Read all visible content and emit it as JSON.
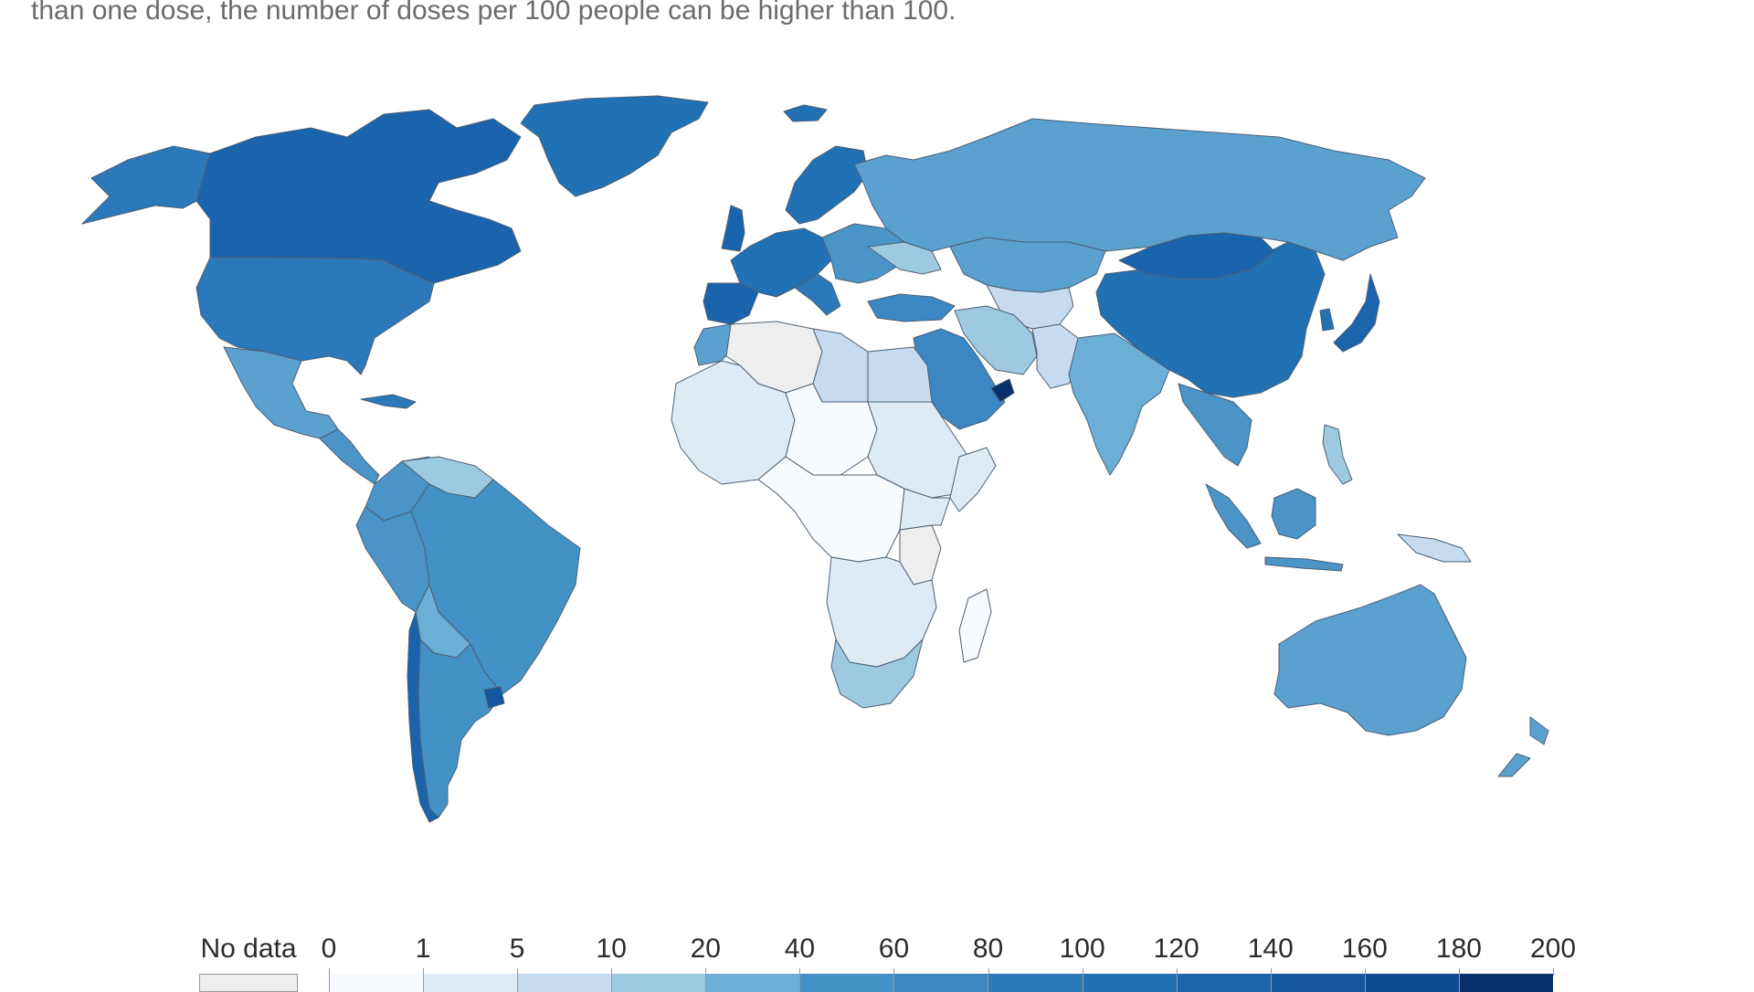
{
  "subtitle": "than one dose, the number of doses per 100 people can be higher than 100.",
  "legend": {
    "no_data_label": "No data",
    "ticks": [
      "0",
      "1",
      "5",
      "10",
      "20",
      "40",
      "60",
      "80",
      "100",
      "120",
      "140",
      "160",
      "180",
      "200"
    ],
    "colors": [
      "#f7fbff",
      "#deebf7",
      "#c6dbef",
      "#9ecae1",
      "#6baed6",
      "#4292c6",
      "#3a87c4",
      "#2b78ba",
      "#2171b5",
      "#1c64ab",
      "#1558a0",
      "#0e4b93",
      "#08306b"
    ],
    "no_data_color": "#eeeeee"
  },
  "colors": {
    "ocean": "#ffffff",
    "border": "#5a6d80"
  }
}
